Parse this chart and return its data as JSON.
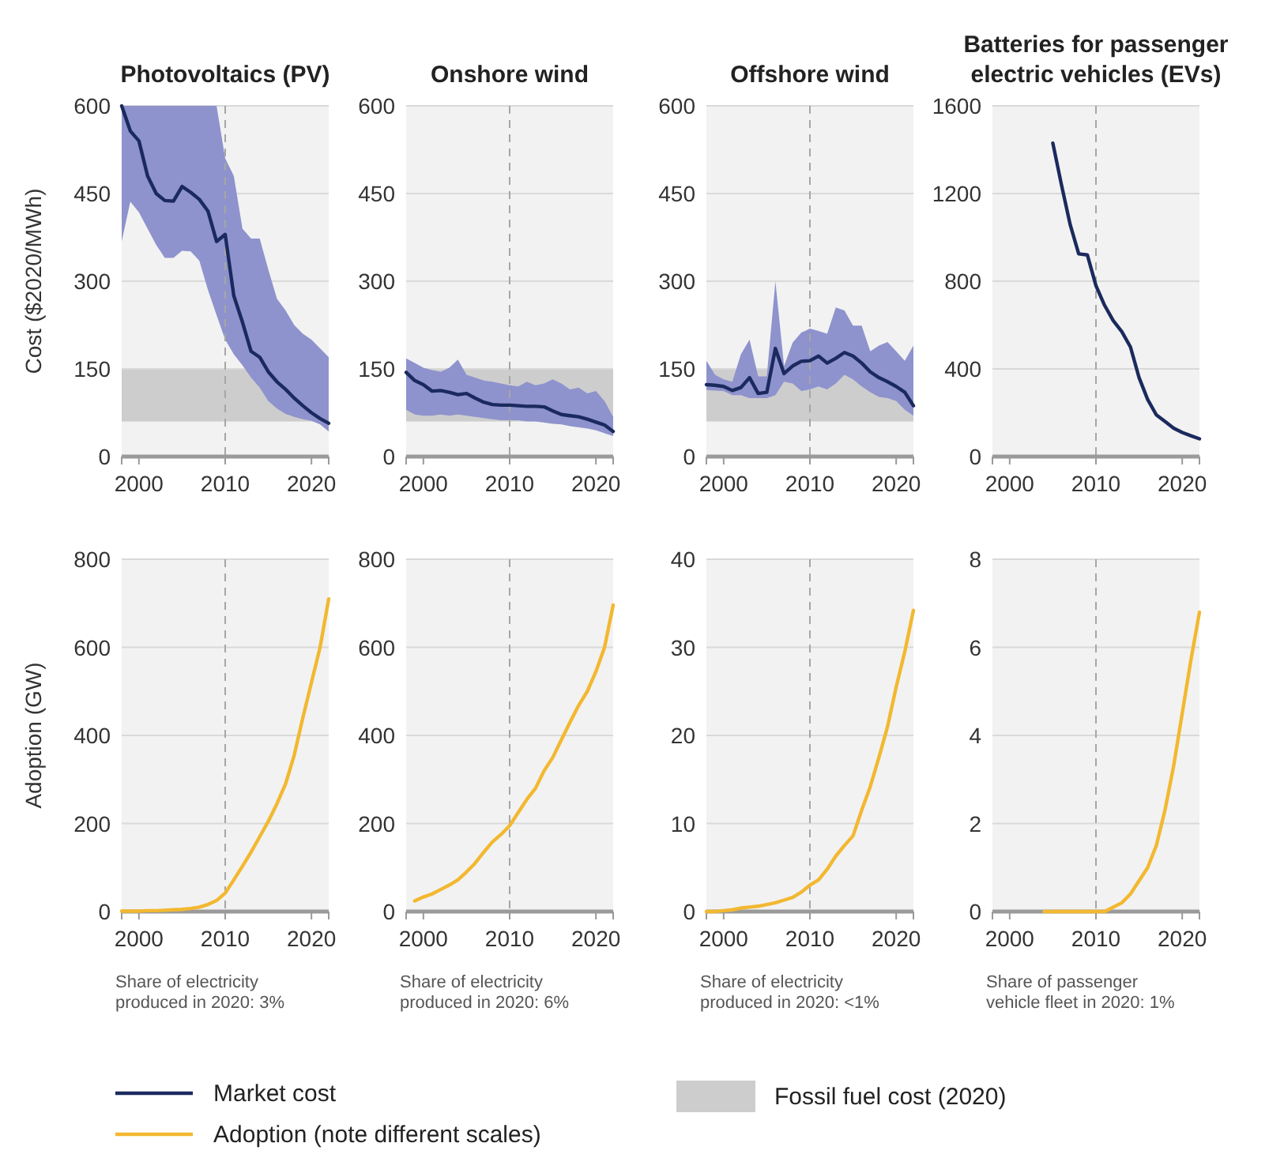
{
  "chart_data": [
    {
      "type": "line",
      "title": "Photovoltaics (PV)",
      "ylabel": "Cost ($2020/MWh)",
      "xlim": [
        1998,
        2022
      ],
      "xticks": [
        2000,
        2010,
        2020
      ],
      "ylim": [
        0,
        600
      ],
      "yticks": [
        0,
        150,
        300,
        450,
        600
      ],
      "grid": "y",
      "legend": "bottom",
      "series": [
        {
          "name": "Market cost",
          "color": "#1b2a5e",
          "x": [
            1998,
            1999,
            2000,
            2001,
            2002,
            2003,
            2004,
            2005,
            2006,
            2007,
            2008,
            2009,
            2010,
            2011,
            2012,
            2013,
            2014,
            2015,
            2016,
            2017,
            2018,
            2019,
            2020,
            2021,
            2022
          ],
          "values": [
            600,
            557,
            540,
            480,
            450,
            438,
            437,
            462,
            452,
            440,
            420,
            368,
            380,
            275,
            230,
            180,
            170,
            145,
            128,
            115,
            100,
            87,
            75,
            65,
            57
          ],
          "upper": [
            600,
            600,
            600,
            600,
            600,
            600,
            600,
            600,
            600,
            600,
            600,
            600,
            510,
            480,
            390,
            373,
            373,
            320,
            270,
            250,
            225,
            210,
            200,
            185,
            170
          ],
          "lower": [
            368,
            436,
            418,
            390,
            362,
            340,
            340,
            352,
            351,
            335,
            285,
            242,
            200,
            175,
            156,
            135,
            118,
            95,
            82,
            73,
            68,
            64,
            61,
            55,
            43
          ]
        }
      ],
      "bands": [
        {
          "axis": "y",
          "from": 60,
          "to": 150,
          "label": "Fossil fuel cost (2020)",
          "color": "#cdcdcd"
        }
      ],
      "ref_lines": [
        {
          "axis": "x",
          "value": 2010,
          "line_style": "dashed",
          "color": "#a6a6a6"
        }
      ]
    },
    {
      "type": "line",
      "title": "Onshore wind",
      "xlim": [
        1998,
        2022
      ],
      "xticks": [
        2000,
        2010,
        2020
      ],
      "ylim": [
        0,
        600
      ],
      "yticks": [
        0,
        150,
        300,
        450,
        600
      ],
      "grid": "y",
      "series": [
        {
          "color": "#1b2a5e",
          "x": [
            1998,
            1999,
            2000,
            2001,
            2002,
            2003,
            2004,
            2005,
            2006,
            2007,
            2008,
            2009,
            2010,
            2011,
            2012,
            2013,
            2014,
            2015,
            2016,
            2017,
            2018,
            2019,
            2020,
            2021,
            2022
          ],
          "values": [
            144,
            130,
            123,
            112,
            113,
            110,
            106,
            108,
            100,
            93,
            89,
            88,
            88,
            87,
            86,
            86,
            85,
            78,
            72,
            70,
            68,
            64,
            59,
            54,
            43
          ],
          "upper": [
            168,
            160,
            152,
            148,
            145,
            152,
            166,
            140,
            135,
            130,
            128,
            125,
            122,
            120,
            128,
            122,
            125,
            132,
            125,
            115,
            118,
            108,
            112,
            95,
            68
          ],
          "lower": [
            80,
            72,
            70,
            70,
            72,
            70,
            72,
            70,
            68,
            66,
            64,
            62,
            62,
            62,
            60,
            60,
            58,
            56,
            55,
            52,
            50,
            48,
            45,
            40,
            35
          ]
        }
      ],
      "bands": [
        {
          "axis": "y",
          "from": 60,
          "to": 150,
          "color": "#cdcdcd"
        }
      ],
      "ref_lines": [
        {
          "axis": "x",
          "value": 2010,
          "line_style": "dashed",
          "color": "#a6a6a6"
        }
      ]
    },
    {
      "type": "line",
      "title": "Offshore wind",
      "xlim": [
        1998,
        2022
      ],
      "xticks": [
        2000,
        2010,
        2020
      ],
      "ylim": [
        0,
        600
      ],
      "yticks": [
        0,
        150,
        300,
        450,
        600
      ],
      "grid": "y",
      "series": [
        {
          "color": "#1b2a5e",
          "x": [
            1998,
            1999,
            2000,
            2001,
            2002,
            2003,
            2004,
            2005,
            2006,
            2007,
            2008,
            2009,
            2010,
            2011,
            2012,
            2013,
            2014,
            2015,
            2016,
            2017,
            2018,
            2019,
            2020,
            2021,
            2022
          ],
          "values": [
            123,
            122,
            120,
            113,
            118,
            135,
            108,
            110,
            185,
            142,
            155,
            163,
            164,
            172,
            160,
            168,
            178,
            172,
            160,
            145,
            135,
            128,
            120,
            110,
            87
          ],
          "upper": [
            164,
            140,
            132,
            128,
            175,
            200,
            137,
            137,
            300,
            155,
            195,
            212,
            219,
            215,
            210,
            255,
            250,
            224,
            224,
            180,
            190,
            196,
            180,
            164,
            190
          ],
          "lower": [
            114,
            113,
            112,
            105,
            105,
            100,
            100,
            100,
            105,
            128,
            125,
            112,
            115,
            120,
            115,
            125,
            140,
            132,
            120,
            110,
            102,
            100,
            95,
            80,
            70
          ]
        }
      ],
      "bands": [
        {
          "axis": "y",
          "from": 60,
          "to": 150,
          "color": "#cdcdcd"
        }
      ],
      "ref_lines": [
        {
          "axis": "x",
          "value": 2010,
          "line_style": "dashed",
          "color": "#a6a6a6"
        }
      ]
    },
    {
      "type": "line",
      "title": "Batteries for passenger electric vehicles (EVs)",
      "xlim": [
        1998,
        2022
      ],
      "xticks": [
        2000,
        2010,
        2020
      ],
      "ylim": [
        0,
        1600
      ],
      "yticks": [
        0,
        400,
        800,
        1200,
        1600
      ],
      "grid": "y",
      "series": [
        {
          "color": "#1b2a5e",
          "x": [
            2005,
            2006,
            2007,
            2008,
            2009,
            2010,
            2011,
            2012,
            2013,
            2014,
            2015,
            2016,
            2017,
            2018,
            2019,
            2020,
            2021,
            2022
          ],
          "values": [
            1430,
            1240,
            1060,
            925,
            920,
            780,
            690,
            620,
            570,
            500,
            360,
            260,
            190,
            160,
            130,
            110,
            95,
            81
          ]
        }
      ],
      "ref_lines": [
        {
          "axis": "x",
          "value": 2010,
          "line_style": "dashed",
          "color": "#a6a6a6"
        }
      ]
    },
    {
      "type": "line",
      "ylabel": "Adoption (GW)",
      "xlim": [
        1998,
        2022
      ],
      "xticks": [
        2000,
        2010,
        2020
      ],
      "ylim": [
        0,
        800
      ],
      "yticks": [
        0,
        200,
        400,
        600,
        800
      ],
      "grid": "y",
      "legend": "bottom",
      "annotations": [
        "Share of electricity produced in 2020: 3%"
      ],
      "series": [
        {
          "name": "Adoption (note different scales)",
          "color": "#f2b830",
          "x": [
            1998,
            1999,
            2000,
            2001,
            2002,
            2003,
            2004,
            2005,
            2006,
            2007,
            2008,
            2009,
            2010,
            2011,
            2012,
            2013,
            2014,
            2015,
            2016,
            2017,
            2018,
            2019,
            2020,
            2021,
            2022
          ],
          "values": [
            1,
            1,
            1,
            2,
            2,
            3,
            4,
            5,
            7,
            10,
            16,
            25,
            42,
            72,
            103,
            135,
            170,
            205,
            245,
            290,
            355,
            440,
            520,
            600,
            710
          ]
        }
      ],
      "ref_lines": [
        {
          "axis": "x",
          "value": 2010,
          "line_style": "dashed",
          "color": "#a6a6a6"
        }
      ]
    },
    {
      "type": "line",
      "xlim": [
        1998,
        2022
      ],
      "xticks": [
        2000,
        2010,
        2020
      ],
      "ylim": [
        0,
        800
      ],
      "yticks": [
        0,
        200,
        400,
        600,
        800
      ],
      "grid": "y",
      "annotations": [
        "Share of electricity produced in 2020: 6%"
      ],
      "series": [
        {
          "color": "#f2b830",
          "x": [
            1999,
            2000,
            2001,
            2002,
            2003,
            2004,
            2005,
            2006,
            2007,
            2008,
            2009,
            2010,
            2011,
            2012,
            2013,
            2014,
            2015,
            2016,
            2017,
            2018,
            2019,
            2020,
            2021,
            2022
          ],
          "values": [
            24,
            33,
            40,
            50,
            60,
            72,
            90,
            110,
            135,
            158,
            175,
            195,
            225,
            255,
            280,
            320,
            350,
            390,
            430,
            468,
            500,
            545,
            600,
            696
          ]
        }
      ],
      "ref_lines": [
        {
          "axis": "x",
          "value": 2010,
          "line_style": "dashed",
          "color": "#a6a6a6"
        }
      ]
    },
    {
      "type": "line",
      "xlim": [
        1998,
        2022
      ],
      "xticks": [
        2000,
        2010,
        2020
      ],
      "ylim": [
        0,
        40
      ],
      "yticks": [
        0,
        10,
        20,
        30,
        40
      ],
      "grid": "y",
      "annotations": [
        "Share of electricity produced in 2020: <1%"
      ],
      "series": [
        {
          "color": "#f2b830",
          "x": [
            1998,
            1999,
            2000,
            2001,
            2002,
            2003,
            2004,
            2005,
            2006,
            2007,
            2008,
            2009,
            2010,
            2011,
            2012,
            2013,
            2014,
            2015,
            2016,
            2017,
            2018,
            2019,
            2020,
            2021,
            2022
          ],
          "values": [
            0,
            0,
            0.1,
            0.2,
            0.4,
            0.5,
            0.6,
            0.8,
            1,
            1.3,
            1.6,
            2.2,
            3,
            3.6,
            4.8,
            6.3,
            7.5,
            8.6,
            11.5,
            14.2,
            17.5,
            21,
            25.5,
            29.5,
            34.2
          ]
        }
      ],
      "ref_lines": [
        {
          "axis": "x",
          "value": 2010,
          "line_style": "dashed",
          "color": "#a6a6a6"
        }
      ]
    },
    {
      "type": "line",
      "xlim": [
        1998,
        2022
      ],
      "xticks": [
        2000,
        2010,
        2020
      ],
      "ylim": [
        0,
        8
      ],
      "yticks": [
        0,
        2,
        4,
        6,
        8
      ],
      "grid": "y",
      "annotations": [
        "Share of passenger vehicle fleet in 2020: 1%"
      ],
      "series": [
        {
          "color": "#f2b830",
          "x": [
            2004,
            2005,
            2006,
            2007,
            2008,
            2009,
            2010,
            2011,
            2012,
            2013,
            2014,
            2015,
            2016,
            2017,
            2018,
            2019,
            2020,
            2021,
            2022
          ],
          "values": [
            0,
            0,
            0,
            0,
            0,
            0,
            0,
            0,
            0.1,
            0.2,
            0.4,
            0.7,
            1,
            1.5,
            2.3,
            3.3,
            4.5,
            5.7,
            6.8
          ]
        }
      ],
      "ref_lines": [
        {
          "axis": "x",
          "value": 2010,
          "line_style": "dashed",
          "color": "#a6a6a6"
        }
      ]
    }
  ]
}
